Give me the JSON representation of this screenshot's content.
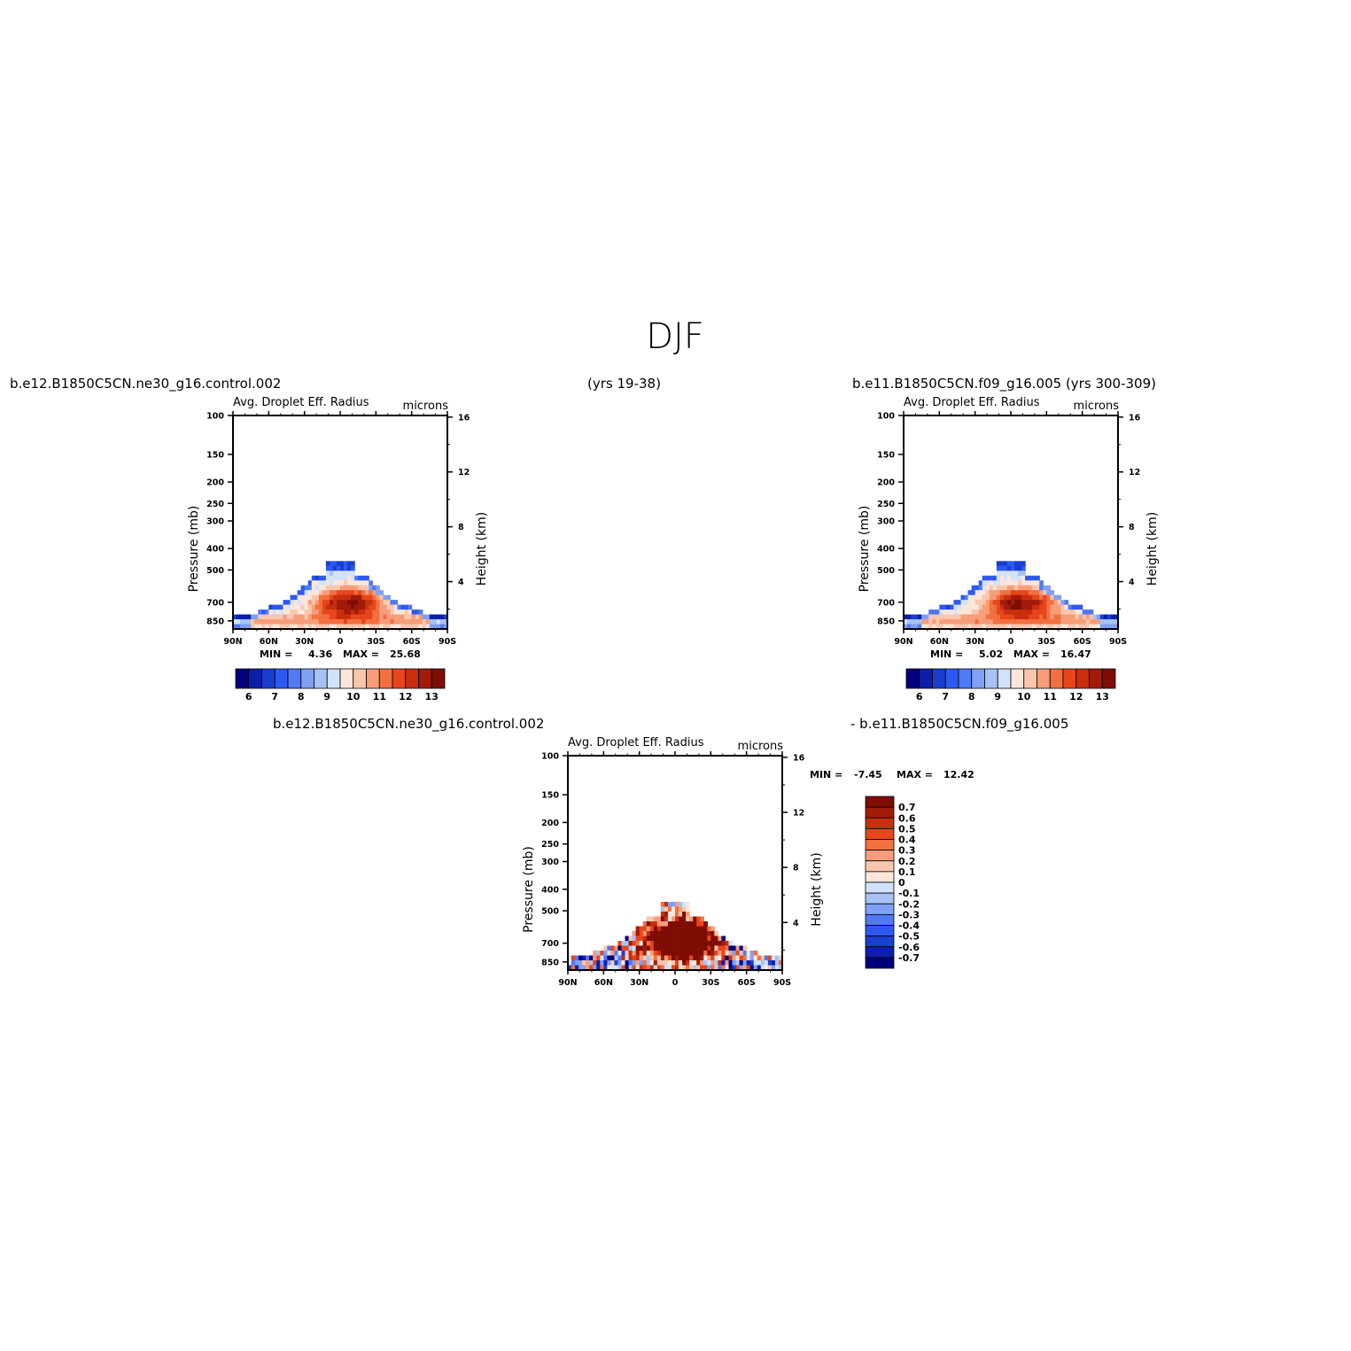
{
  "title": "DJF",
  "headers": {
    "top_left": "b.e12.B1850C5CN.ne30_g16.control.002",
    "top_mid": "(yrs 19-38)",
    "top_right": "b.e11.B1850C5CN.f09_g16.005 (yrs 300-309)",
    "bottom_left": "b.e12.B1850C5CN.ne30_g16.control.002",
    "bottom_right": "- b.e11.B1850C5CN.f09_g16.005"
  },
  "colors": {
    "scale": [
      "#00007f",
      "#0d1fa8",
      "#1a3fd0",
      "#2e59f0",
      "#4f79f5",
      "#7fa0f5",
      "#a6c3f5",
      "#d2e2fb",
      "#fbe6d9",
      "#fac6ad",
      "#f79d79",
      "#f2703f",
      "#e6461a",
      "#c92e0f",
      "#a11b09",
      "#7f0d05"
    ]
  },
  "chart_data": [
    {
      "id": "control",
      "type": "heatmap",
      "title": "Avg. Droplet Eff. Radius",
      "units": "microns",
      "ylabel_left": "Pressure (mb)",
      "ylabel_right": "Height (km)",
      "x_ticklabels": [
        "90N",
        "60N",
        "30N",
        "0",
        "30S",
        "60S",
        "90S"
      ],
      "x_range": [
        90,
        -90
      ],
      "y_ticklabels": [
        "100",
        "150",
        "200",
        "250",
        "300",
        "400",
        "500",
        "700",
        "850"
      ],
      "y_ticks": [
        100,
        150,
        200,
        250,
        300,
        400,
        500,
        700,
        850
      ],
      "y_range_mb": [
        100,
        925
      ],
      "height_ticklabels": [
        "16",
        "12",
        "8",
        "4"
      ],
      "height_ticks": [
        16,
        12,
        8,
        4
      ],
      "min_label": "MIN =",
      "min": "4.36",
      "max_label": "MAX =",
      "max": "25.68",
      "colorbar_labels": [
        "6",
        "7",
        "8",
        "9",
        "10",
        "11",
        "12",
        "13"
      ],
      "colorbar_orientation": "horizontal"
    },
    {
      "id": "reference",
      "type": "heatmap",
      "title": "Avg. Droplet Eff. Radius",
      "units": "microns",
      "ylabel_left": "Pressure (mb)",
      "ylabel_right": "Height (km)",
      "x_ticklabels": [
        "90N",
        "60N",
        "30N",
        "0",
        "30S",
        "60S",
        "90S"
      ],
      "x_range": [
        90,
        -90
      ],
      "y_ticklabels": [
        "100",
        "150",
        "200",
        "250",
        "300",
        "400",
        "500",
        "700",
        "850"
      ],
      "y_ticks": [
        100,
        150,
        200,
        250,
        300,
        400,
        500,
        700,
        850
      ],
      "y_range_mb": [
        100,
        925
      ],
      "height_ticklabels": [
        "16",
        "12",
        "8",
        "4"
      ],
      "height_ticks": [
        16,
        12,
        8,
        4
      ],
      "min_label": "MIN =",
      "min": "5.02",
      "max_label": "MAX =",
      "max": "16.47",
      "colorbar_labels": [
        "6",
        "7",
        "8",
        "9",
        "10",
        "11",
        "12",
        "13"
      ],
      "colorbar_orientation": "horizontal"
    },
    {
      "id": "difference",
      "type": "heatmap",
      "title": "Avg. Droplet Eff. Radius",
      "units": "microns",
      "ylabel_left": "Pressure (mb)",
      "ylabel_right": "Height (km)",
      "x_ticklabels": [
        "90N",
        "60N",
        "30N",
        "0",
        "30S",
        "60S",
        "90S"
      ],
      "x_range": [
        90,
        -90
      ],
      "y_ticklabels": [
        "100",
        "150",
        "200",
        "250",
        "300",
        "400",
        "500",
        "700",
        "850"
      ],
      "y_ticks": [
        100,
        150,
        200,
        250,
        300,
        400,
        500,
        700,
        850
      ],
      "y_range_mb": [
        100,
        925
      ],
      "height_ticklabels": [
        "16",
        "12",
        "8",
        "4"
      ],
      "height_ticks": [
        16,
        12,
        8,
        4
      ],
      "min_label": "MIN =",
      "min": "-7.45",
      "max_label": "MAX =",
      "max": "12.42",
      "colorbar_labels": [
        "0.7",
        "0.6",
        "0.5",
        "0.4",
        "0.3",
        "0.2",
        "0.1",
        "0",
        "-0.1",
        "-0.2",
        "-0.3",
        "-0.4",
        "-0.5",
        "-0.6",
        "-0.7"
      ],
      "colorbar_orientation": "vertical"
    }
  ]
}
